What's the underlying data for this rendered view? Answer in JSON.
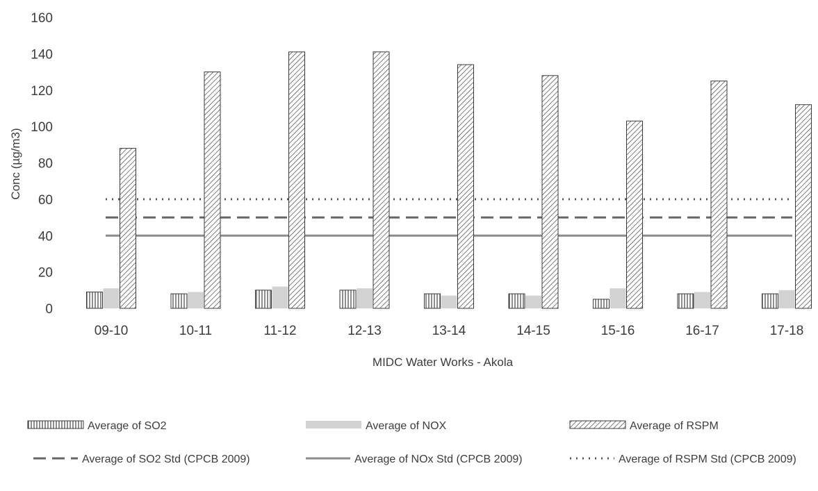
{
  "chart_data": {
    "type": "bar",
    "xlabel": "MIDC Water Works - Akola",
    "ylabel": "Conc (µg/m3)",
    "ylim": [
      0,
      160
    ],
    "yticks": [
      0,
      20,
      40,
      60,
      80,
      100,
      120,
      140,
      160
    ],
    "grid": false,
    "legend_placement": "bottom",
    "categories": [
      "09-10",
      "10-11",
      "11-12",
      "12-13",
      "13-14",
      "14-15",
      "15-16",
      "16-17",
      "17-18"
    ],
    "series": [
      {
        "name": "Average of SO2",
        "kind": "bar",
        "pattern": "vertical-lines",
        "values": [
          9,
          8,
          10,
          10,
          8,
          8,
          5,
          8,
          8
        ]
      },
      {
        "name": "Average of NOX",
        "kind": "bar",
        "pattern": "solid-light",
        "values": [
          11,
          9,
          12,
          11,
          7,
          7,
          11,
          9,
          10
        ]
      },
      {
        "name": "Average of RSPM",
        "kind": "bar",
        "pattern": "diagonal-hatch",
        "values": [
          88,
          130,
          141,
          141,
          134,
          128,
          103,
          125,
          112
        ]
      },
      {
        "name": "Average of SO2 Std (CPCB 2009)",
        "kind": "line",
        "style": "dashed",
        "values": [
          50,
          50,
          50,
          50,
          50,
          50,
          50,
          50,
          50
        ]
      },
      {
        "name": "Average of NOx Std (CPCB 2009)",
        "kind": "line",
        "style": "solid",
        "values": [
          40,
          40,
          40,
          40,
          40,
          40,
          40,
          40,
          40
        ]
      },
      {
        "name": "Average of RSPM Std (CPCB 2009)",
        "kind": "line",
        "style": "dotted",
        "values": [
          60,
          60,
          60,
          60,
          60,
          60,
          60,
          60,
          60
        ]
      }
    ]
  },
  "colors": {
    "bar_outline": "#3a3a3a",
    "hatch": "#444444",
    "nox_fill": "#d2d2d2",
    "so2_line": "#666666",
    "nox_line": "#8c8c8c",
    "rspm_line": "#555555",
    "text": "#3c3c3c"
  }
}
